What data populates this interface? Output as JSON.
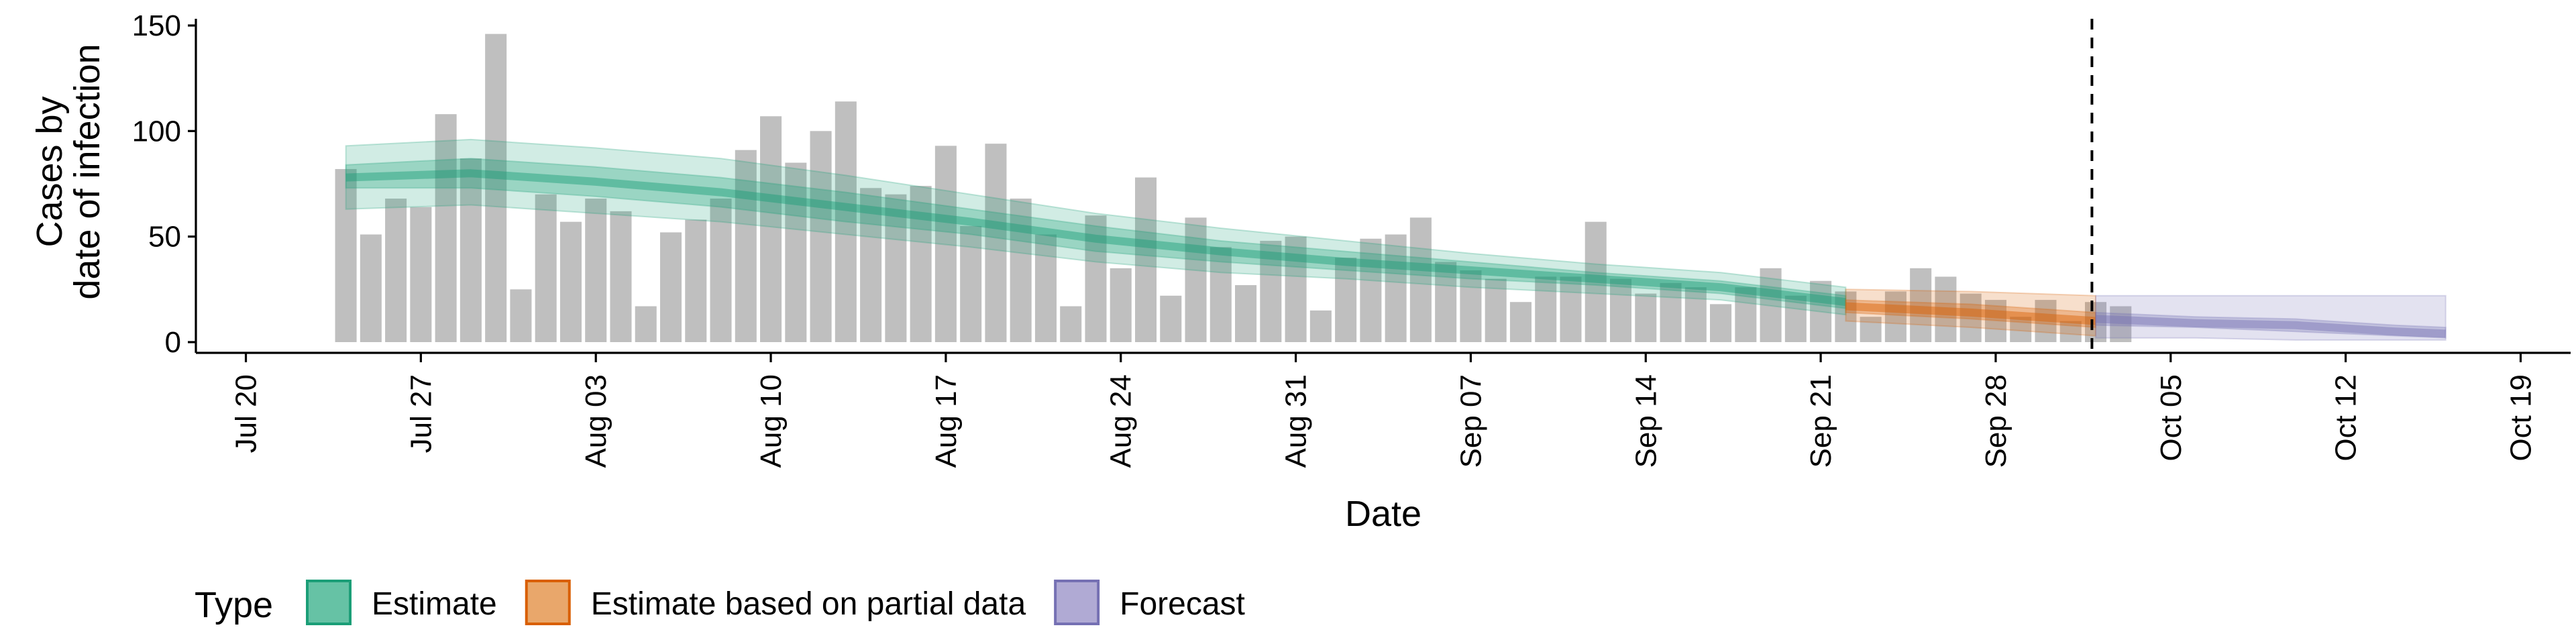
{
  "chart_data": {
    "type": "bar",
    "title": "",
    "xlabel": "Date",
    "ylabel_lines": [
      "Cases by",
      "date of infection"
    ],
    "ylim": [
      0,
      155
    ],
    "y_ticks": [
      0,
      50,
      100,
      150
    ],
    "x_ticks": [
      "Jul 20",
      "Jul 27",
      "Aug 03",
      "Aug 10",
      "Aug 17",
      "Aug 24",
      "Aug 31",
      "Sep 07",
      "Sep 14",
      "Sep 21",
      "Sep 28",
      "Oct 05",
      "Oct 12",
      "Oct 19"
    ],
    "xlim": [
      "2020-07-18",
      "2020-10-21"
    ],
    "forecast_date": "2020-10-02",
    "bars_start_date": "2020-07-24",
    "bar_values": [
      82,
      51,
      68,
      64,
      108,
      87,
      146,
      25,
      70,
      57,
      68,
      62,
      17,
      52,
      58,
      68,
      91,
      107,
      85,
      100,
      114,
      73,
      70,
      74,
      93,
      55,
      94,
      68,
      51,
      17,
      60,
      35,
      78,
      22,
      59,
      45,
      27,
      48,
      50,
      15,
      40,
      49,
      51,
      59,
      38,
      34,
      30,
      19,
      31,
      31,
      57,
      30,
      23,
      28,
      26,
      18,
      26,
      35,
      22,
      29,
      24,
      12,
      24,
      35,
      31,
      23,
      20,
      12,
      20,
      10,
      19,
      17
    ],
    "bar_color": "#bfbfbf",
    "legend_title": "Type",
    "legend": [
      {
        "label": "Estimate",
        "fill": "#66c2a5",
        "stroke": "#1b9e77"
      },
      {
        "label": "Estimate based on partial data",
        "fill": "#e9a76b",
        "stroke": "#d95f02"
      },
      {
        "label": "Forecast",
        "fill": "#b0aad4",
        "stroke": "#7570b3"
      }
    ],
    "series": [
      {
        "name": "Estimate",
        "color": "#1b9e77",
        "start": "2020-07-24",
        "end": "2020-09-21",
        "median": [
          [
            0,
            78
          ],
          [
            5,
            80
          ],
          [
            10,
            76
          ],
          [
            15,
            71
          ],
          [
            20,
            64
          ],
          [
            25,
            57
          ],
          [
            30,
            49
          ],
          [
            35,
            43
          ],
          [
            40,
            38
          ],
          [
            45,
            34
          ],
          [
            50,
            30
          ],
          [
            55,
            26
          ],
          [
            60,
            19
          ]
        ],
        "ci50": [
          [
            0,
            73,
            84
          ],
          [
            5,
            73,
            87
          ],
          [
            10,
            69,
            83
          ],
          [
            15,
            64,
            78
          ],
          [
            20,
            57,
            71
          ],
          [
            25,
            51,
            63
          ],
          [
            30,
            43,
            55
          ],
          [
            35,
            38,
            48
          ],
          [
            40,
            34,
            43
          ],
          [
            45,
            30,
            38
          ],
          [
            50,
            27,
            33
          ],
          [
            55,
            23,
            29
          ],
          [
            60,
            16,
            22
          ]
        ],
        "ci90": [
          [
            0,
            63,
            93
          ],
          [
            5,
            65,
            96
          ],
          [
            10,
            61,
            92
          ],
          [
            15,
            57,
            87
          ],
          [
            20,
            51,
            79
          ],
          [
            25,
            45,
            70
          ],
          [
            30,
            38,
            61
          ],
          [
            35,
            33,
            54
          ],
          [
            40,
            30,
            48
          ],
          [
            45,
            26,
            42
          ],
          [
            50,
            23,
            37
          ],
          [
            55,
            20,
            33
          ],
          [
            60,
            13,
            26
          ]
        ]
      },
      {
        "name": "Estimate based on partial data",
        "color": "#d95f02",
        "start": "2020-09-22",
        "end": "2020-10-02",
        "median": [
          [
            0,
            17
          ],
          [
            5,
            14
          ],
          [
            10,
            10
          ]
        ],
        "ci50": [
          [
            0,
            14,
            20
          ],
          [
            5,
            11,
            18
          ],
          [
            10,
            7,
            14
          ]
        ],
        "ci90": [
          [
            0,
            10,
            25
          ],
          [
            5,
            7,
            24
          ],
          [
            10,
            3,
            22
          ]
        ]
      },
      {
        "name": "Forecast",
        "color": "#7570b3",
        "start": "2020-10-02",
        "end": "2020-10-16",
        "median": [
          [
            0,
            11
          ],
          [
            4,
            9
          ],
          [
            8,
            8
          ],
          [
            12,
            5
          ],
          [
            14,
            4
          ]
        ],
        "ci50": [
          [
            0,
            8,
            14
          ],
          [
            4,
            7,
            12
          ],
          [
            8,
            5,
            11
          ],
          [
            12,
            3,
            8
          ],
          [
            14,
            2,
            7
          ]
        ],
        "ci90": [
          [
            0,
            2,
            22
          ],
          [
            4,
            2,
            22
          ],
          [
            8,
            1,
            22
          ],
          [
            12,
            1,
            22
          ],
          [
            14,
            1,
            22
          ]
        ]
      }
    ]
  }
}
